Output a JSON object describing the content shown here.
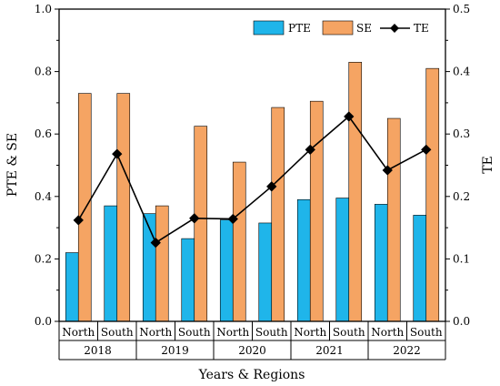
{
  "chart_data": {
    "type": "bar",
    "categories": [
      "North",
      "South",
      "North",
      "South",
      "North",
      "South",
      "North",
      "South",
      "North",
      "South"
    ],
    "groups": [
      "2018",
      "2019",
      "2020",
      "2021",
      "2022"
    ],
    "series": [
      {
        "name": "PTE",
        "axis": "left",
        "kind": "bar",
        "color": "#1fb5ea",
        "values": [
          0.22,
          0.37,
          0.345,
          0.265,
          0.325,
          0.315,
          0.39,
          0.395,
          0.375,
          0.34
        ]
      },
      {
        "name": "SE",
        "axis": "left",
        "kind": "bar",
        "color": "#f5a463",
        "values": [
          0.73,
          0.73,
          0.37,
          0.625,
          0.51,
          0.685,
          0.705,
          0.83,
          0.65,
          0.81
        ]
      },
      {
        "name": "TE",
        "axis": "right",
        "kind": "line",
        "color": "#000000",
        "values": [
          0.162,
          0.268,
          0.126,
          0.165,
          0.164,
          0.216,
          0.275,
          0.328,
          0.242,
          0.275
        ]
      }
    ],
    "xlabel": "Years & Regions",
    "ylabel": "PTE & SE",
    "y2label": "TE",
    "ylim": [
      0,
      1.0
    ],
    "y2lim": [
      0,
      0.5
    ],
    "yticks": [
      "0.0",
      "0.2",
      "0.4",
      "0.6",
      "0.8",
      "1.0"
    ],
    "y2ticks": [
      "0.0",
      "0.1",
      "0.2",
      "0.3",
      "0.4",
      "0.5"
    ],
    "legend": [
      "PTE",
      "SE",
      "TE"
    ],
    "legend_position": "top-right"
  }
}
